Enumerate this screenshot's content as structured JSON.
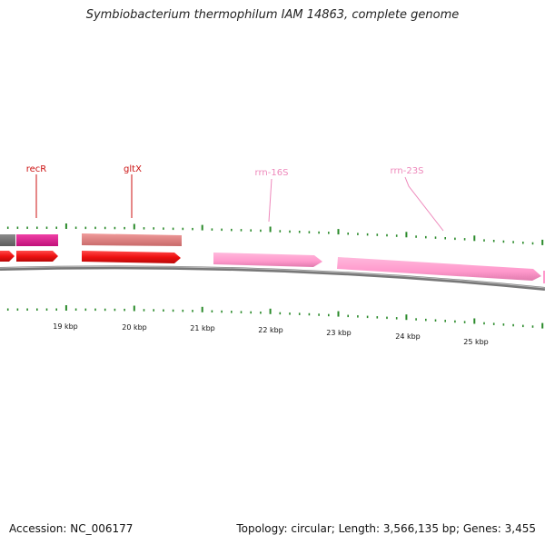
{
  "header": {
    "title": "Symbiobacterium thermophilum IAM 14863, complete genome"
  },
  "footer": {
    "accession": "Accession: NC_006177",
    "summary": "Topology: circular; Length: 3,566,135 bp; Genes: 3,455"
  },
  "colors": {
    "tick": "#2a8a2a",
    "backbone": "#888888",
    "gene_red": "#ee1111",
    "gene_magenta": "#e0188c",
    "gene_salmon": "#e07f7f",
    "gene_grey": "#777777",
    "rrna_pink": "#ff99cc",
    "label_red": "#cc1111",
    "label_pink": "#ee88bb"
  },
  "gene_labels": [
    {
      "name": "recR"
    },
    {
      "name": "gltX"
    },
    {
      "name": "rrn-16S"
    },
    {
      "name": "rrn-23S"
    }
  ],
  "kbp_labels": [
    "19 kbp",
    "20 kbp",
    "21 kbp",
    "22 kbp",
    "23 kbp",
    "24 kbp",
    "25 kbp"
  ]
}
